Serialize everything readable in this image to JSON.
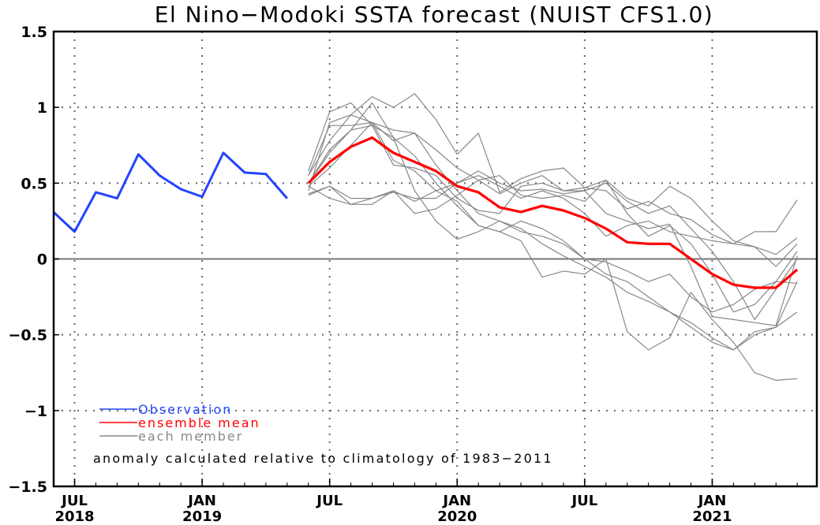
{
  "chart_data": {
    "type": "line",
    "title": "El Nino−Modoki SSTA forecast (NUIST CFS1.0)",
    "xlabel": "",
    "ylabel": "",
    "ylim": [
      -1.5,
      1.5
    ],
    "grid": true,
    "yticks": [
      1.5,
      1,
      0.5,
      0,
      -0.5,
      -1,
      -1.5
    ],
    "ytick_labels": [
      "1.5",
      "1",
      "0.5",
      "0",
      "−0.5",
      "−1",
      "−1.5"
    ],
    "xticks": [
      {
        "month_index": 1,
        "month": "JUL",
        "year": "2018"
      },
      {
        "month_index": 7,
        "month": "JAN",
        "year": "2019"
      },
      {
        "month_index": 13,
        "month": "JUL",
        "year": ""
      },
      {
        "month_index": 19,
        "month": "JAN",
        "year": "2020"
      },
      {
        "month_index": 25,
        "month": "JUL",
        "year": ""
      },
      {
        "month_index": 31,
        "month": "JAN",
        "year": "2021"
      }
    ],
    "x_start": "2018-06",
    "x_range_months": [
      0,
      35.9
    ],
    "observation": {
      "name": "Observation",
      "color": "#2244ff",
      "start_index": 0,
      "values": [
        0.31,
        0.18,
        0.44,
        0.4,
        0.69,
        0.55,
        0.46,
        0.41,
        0.7,
        0.57,
        0.56,
        0.4
      ]
    },
    "ensemble_mean": {
      "name": "ensemble mean",
      "color": "#ff0000",
      "start_index": 12,
      "values": [
        0.5,
        0.64,
        0.74,
        0.8,
        0.7,
        0.64,
        0.58,
        0.48,
        0.44,
        0.34,
        0.31,
        0.35,
        0.32,
        0.27,
        0.2,
        0.11,
        0.1,
        0.1,
        0.0,
        -0.1,
        -0.17,
        -0.19,
        -0.19,
        -0.07
      ]
    },
    "members": {
      "name": "each member",
      "color": "#888888",
      "start_index": 12,
      "series": [
        [
          0.58,
          0.97,
          1.03,
          0.88,
          0.8,
          0.68,
          0.5,
          0.35,
          0.22,
          0.18,
          0.25,
          0.2,
          0.12,
          0.0,
          -0.1,
          -0.15,
          -0.25,
          -0.35,
          -0.45,
          -0.55,
          -0.6,
          -0.5,
          -0.45,
          -0.35
        ],
        [
          0.55,
          0.78,
          0.95,
          1.07,
          1.0,
          1.09,
          0.92,
          0.69,
          0.83,
          0.44,
          0.53,
          0.58,
          0.6,
          0.47,
          0.45,
          0.33,
          0.38,
          0.3,
          0.26,
          0.16,
          0.1,
          0.18,
          0.18,
          0.39
        ],
        [
          0.45,
          0.9,
          0.95,
          0.9,
          0.85,
          0.83,
          0.72,
          0.6,
          0.52,
          0.43,
          0.5,
          0.55,
          0.45,
          0.47,
          0.52,
          0.4,
          0.35,
          0.48,
          0.4,
          0.25,
          0.12,
          0.08,
          0.03,
          0.14
        ],
        [
          0.5,
          0.72,
          0.85,
          1.03,
          0.8,
          0.45,
          0.25,
          0.13,
          0.18,
          0.25,
          0.2,
          0.1,
          0.02,
          -0.05,
          -0.12,
          -0.22,
          -0.28,
          -0.35,
          -0.42,
          -0.52,
          -0.6,
          -0.48,
          -0.45,
          -0.15
        ],
        [
          0.43,
          0.48,
          0.4,
          0.4,
          0.45,
          0.38,
          0.45,
          0.5,
          0.55,
          0.48,
          0.4,
          0.45,
          0.4,
          0.3,
          0.15,
          0.22,
          0.25,
          0.18,
          0.15,
          0.12,
          0.1,
          0.08,
          -0.05,
          0.1
        ],
        [
          0.48,
          0.6,
          0.75,
          0.9,
          0.65,
          0.58,
          0.45,
          0.38,
          0.22,
          0.18,
          0.12,
          -0.12,
          -0.08,
          -0.1,
          0.0,
          -0.48,
          -0.6,
          -0.52,
          -0.22,
          -0.4,
          -0.55,
          -0.75,
          -0.8,
          -0.79
        ],
        [
          0.5,
          0.7,
          0.85,
          0.88,
          0.62,
          0.6,
          0.55,
          0.4,
          0.32,
          0.3,
          0.48,
          0.5,
          0.45,
          0.45,
          0.5,
          0.38,
          0.3,
          0.35,
          0.2,
          0.05,
          -0.15,
          -0.4,
          -0.2,
          0.0
        ],
        [
          0.42,
          0.48,
          0.36,
          0.36,
          0.45,
          0.3,
          0.33,
          0.42,
          0.52,
          0.55,
          0.42,
          0.4,
          0.42,
          0.38,
          0.52,
          0.3,
          0.15,
          0.22,
          0.1,
          -0.1,
          -0.35,
          -0.3,
          -0.15,
          0.05
        ],
        [
          0.55,
          0.88,
          0.88,
          0.9,
          0.78,
          0.83,
          0.62,
          0.45,
          0.3,
          0.25,
          0.18,
          0.15,
          0.1,
          0.0,
          -0.02,
          -0.08,
          -0.15,
          -0.1,
          -0.25,
          -0.35,
          -0.3,
          -0.2,
          -0.15,
          -0.16
        ],
        [
          0.48,
          0.4,
          0.36,
          0.4,
          0.44,
          0.4,
          0.4,
          0.5,
          0.58,
          0.5,
          0.45,
          0.46,
          0.43,
          0.45,
          0.3,
          0.25,
          0.2,
          0.23,
          -0.05,
          -0.38,
          -0.4,
          -0.42,
          -0.44,
          0.02
        ]
      ]
    },
    "legend": {
      "placement": "bottom-left",
      "entries": [
        {
          "label": "Observation",
          "color": "#2244ff"
        },
        {
          "label": "ensemble mean",
          "color": "#ff0000"
        },
        {
          "label": "each member",
          "color": "#888888"
        }
      ]
    },
    "annotation": "anomaly calculated relative to climatology of 1983−2011"
  }
}
